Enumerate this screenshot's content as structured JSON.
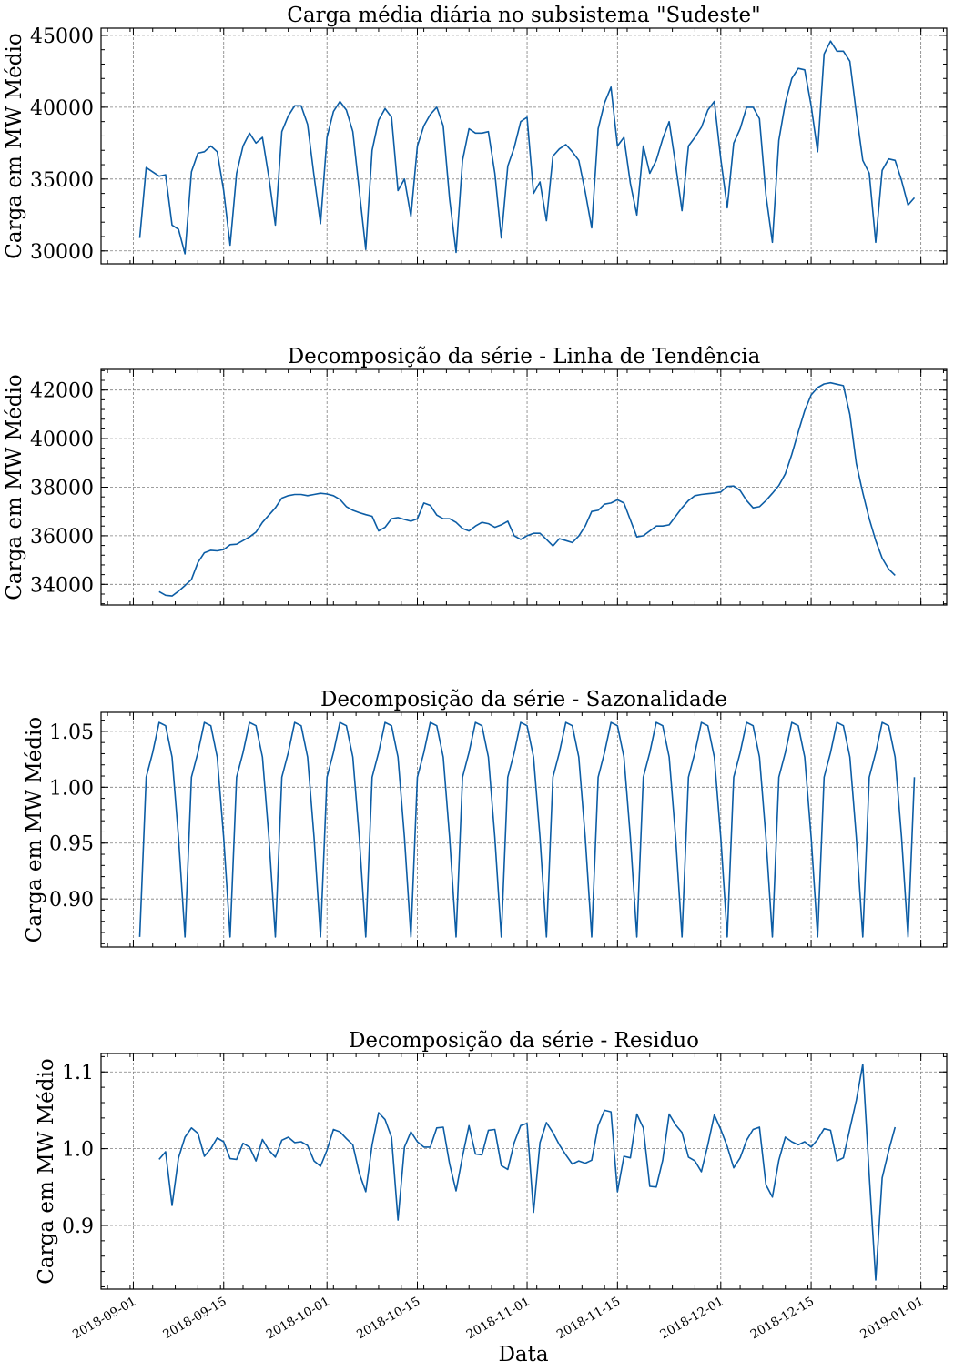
{
  "figure": {
    "xlabel": "Data",
    "x_tick_labels": [
      "2018-09-01",
      "2018-09-15",
      "2018-10-01",
      "2018-10-15",
      "2018-11-01",
      "2018-11-15",
      "2018-12-01",
      "2018-12-15",
      "2019-01-01"
    ],
    "x_ticks_day_offsets": [
      0,
      14,
      30,
      44,
      61,
      75,
      91,
      105,
      122
    ],
    "x_range_day_offsets": [
      -5,
      126
    ]
  },
  "chart_data": [
    {
      "type": "line",
      "title": "Carga média diária no subsistema \"Sudeste\"",
      "xlabel": "",
      "ylabel": "Carga em MW Médio",
      "ylim": [
        29100,
        45500
      ],
      "yticks": [
        30000,
        35000,
        40000,
        45000
      ],
      "ytick_labels": [
        "30000",
        "35000",
        "40000",
        "45000"
      ],
      "x_start_day_offset": 1,
      "values": [
        30900,
        35800,
        35500,
        35200,
        35300,
        31800,
        31500,
        29800,
        35500,
        36800,
        36900,
        37300,
        36900,
        34200,
        30400,
        35400,
        37300,
        38200,
        37500,
        37900,
        35100,
        31800,
        38300,
        39400,
        40100,
        40100,
        38800,
        35200,
        31900,
        37900,
        39700,
        40400,
        39800,
        38300,
        34200,
        30100,
        37000,
        39100,
        39900,
        39300,
        34200,
        35000,
        32400,
        37300,
        38700,
        39500,
        40000,
        38700,
        33600,
        29900,
        36300,
        38500,
        38200,
        38200,
        38300,
        35400,
        30900,
        35900,
        37200,
        39000,
        39300,
        34000,
        34800,
        32100,
        36600,
        37100,
        37400,
        36900,
        36300,
        34100,
        31600,
        38500,
        40300,
        41400,
        37300,
        37900,
        34700,
        32500,
        37300,
        35400,
        36300,
        37800,
        39000,
        36000,
        32800,
        37300,
        37900,
        38600,
        39800,
        40400,
        36400,
        33000,
        37500,
        38500,
        40000,
        40000,
        39200,
        33900,
        30600,
        37700,
        40300,
        42000,
        42700,
        42600,
        40100,
        36900,
        43700,
        44600,
        43900,
        43900,
        43200,
        39600,
        36300,
        35400,
        30600,
        35600,
        36400,
        36300,
        34900,
        33200,
        33700
      ]
    },
    {
      "type": "line",
      "title": "Decomposição da série - Linha de Tendência",
      "xlabel": "",
      "ylabel": "Carga em MW Médio",
      "ylim": [
        33150,
        42850
      ],
      "yticks": [
        34000,
        36000,
        38000,
        40000,
        42000
      ],
      "ytick_labels": [
        "34000",
        "36000",
        "38000",
        "40000",
        "42000"
      ],
      "x_start_day_offset": 4,
      "values": [
        33700,
        33550,
        33520,
        33720,
        33950,
        34200,
        34900,
        35300,
        35400,
        35380,
        35430,
        35630,
        35650,
        35800,
        35950,
        36150,
        36550,
        36850,
        37150,
        37550,
        37650,
        37700,
        37700,
        37650,
        37700,
        37750,
        37720,
        37650,
        37500,
        37200,
        37050,
        36950,
        36870,
        36800,
        36200,
        36350,
        36700,
        36750,
        36670,
        36600,
        36700,
        37350,
        37250,
        36850,
        36700,
        36700,
        36550,
        36300,
        36200,
        36400,
        36550,
        36500,
        36350,
        36450,
        36600,
        36000,
        35850,
        36000,
        36100,
        36100,
        35850,
        35580,
        35880,
        35800,
        35720,
        35990,
        36400,
        37000,
        37050,
        37300,
        37350,
        37480,
        37350,
        36650,
        35950,
        36000,
        36200,
        36400,
        36400,
        36450,
        36800,
        37150,
        37450,
        37650,
        37700,
        37730,
        37760,
        37800,
        38030,
        38050,
        37860,
        37450,
        37150,
        37200,
        37450,
        37750,
        38070,
        38550,
        39350,
        40270,
        41150,
        41800,
        42100,
        42250,
        42300,
        42240,
        42180,
        41000,
        38970,
        37770,
        36700,
        35800,
        35080,
        34630,
        34370
      ]
    },
    {
      "type": "line",
      "title": "Decomposição da série - Sazonalidade",
      "xlabel": "",
      "ylabel": "Carga em MW Médio",
      "ylim": [
        0.857,
        1.067
      ],
      "yticks": [
        0.9,
        0.95,
        1.0,
        1.05
      ],
      "ytick_labels": [
        "0.90",
        "0.95",
        "1.00",
        "1.05"
      ],
      "x_start_day_offset": 1,
      "values": [
        0.866,
        1.009,
        1.031,
        1.058,
        1.055,
        1.027,
        0.955,
        0.866,
        1.009,
        1.031,
        1.058,
        1.055,
        1.027,
        0.955,
        0.866,
        1.009,
        1.031,
        1.058,
        1.055,
        1.027,
        0.955,
        0.866,
        1.009,
        1.031,
        1.058,
        1.055,
        1.027,
        0.955,
        0.866,
        1.009,
        1.031,
        1.058,
        1.055,
        1.027,
        0.955,
        0.866,
        1.009,
        1.031,
        1.058,
        1.055,
        1.027,
        0.955,
        0.866,
        1.009,
        1.031,
        1.058,
        1.055,
        1.027,
        0.955,
        0.866,
        1.009,
        1.031,
        1.058,
        1.055,
        1.027,
        0.955,
        0.866,
        1.009,
        1.031,
        1.058,
        1.055,
        1.027,
        0.955,
        0.866,
        1.009,
        1.031,
        1.058,
        1.055,
        1.027,
        0.955,
        0.866,
        1.009,
        1.031,
        1.058,
        1.055,
        1.027,
        0.955,
        0.866,
        1.009,
        1.031,
        1.058,
        1.055,
        1.027,
        0.955,
        0.866,
        1.009,
        1.031,
        1.058,
        1.055,
        1.027,
        0.955,
        0.866,
        1.009,
        1.031,
        1.058,
        1.055,
        1.027,
        0.955,
        0.866,
        1.009,
        1.031,
        1.058,
        1.055,
        1.027,
        0.955,
        0.866,
        1.009,
        1.031,
        1.058,
        1.055,
        1.027,
        0.955,
        0.866,
        1.009,
        1.031,
        1.058,
        1.055,
        1.027,
        0.955,
        0.866,
        1.009
      ]
    },
    {
      "type": "line",
      "title": "Decomposição da série - Residuo",
      "xlabel": "Data",
      "ylabel": "Carga em MW Médio",
      "ylim": [
        0.817,
        1.124
      ],
      "yticks": [
        0.9,
        1.0,
        1.1
      ],
      "ytick_labels": [
        "0.9",
        "1.0",
        "1.1"
      ],
      "x_start_day_offset": 4,
      "values": [
        0.986,
        0.996,
        0.926,
        0.988,
        1.015,
        1.027,
        1.02,
        0.99,
        1.0,
        1.014,
        1.009,
        0.987,
        0.986,
        1.007,
        1.002,
        0.984,
        1.012,
        0.998,
        0.989,
        1.011,
        1.015,
        1.008,
        1.009,
        1.004,
        0.984,
        0.977,
        0.998,
        1.025,
        1.022,
        1.013,
        1.005,
        0.968,
        0.944,
        1.005,
        1.047,
        1.038,
        1.015,
        0.907,
        1.002,
        1.022,
        1.009,
        1.002,
        1.002,
        1.027,
        1.028,
        0.98,
        0.945,
        0.99,
        1.03,
        0.993,
        0.992,
        1.024,
        1.025,
        0.978,
        0.973,
        1.008,
        1.03,
        1.033,
        0.917,
        1.008,
        1.034,
        1.021,
        1.005,
        0.992,
        0.98,
        0.984,
        0.981,
        0.985,
        1.03,
        1.05,
        1.048,
        0.944,
        0.99,
        0.988,
        1.045,
        1.027,
        0.951,
        0.95,
        0.985,
        1.045,
        1.031,
        1.021,
        0.989,
        0.984,
        0.97,
        1.005,
        1.044,
        1.025,
        1.003,
        0.975,
        0.988,
        1.011,
        1.025,
        1.028,
        0.953,
        0.937,
        0.985,
        1.015,
        1.009,
        1.005,
        1.009,
        1.002,
        1.012,
        1.026,
        1.024,
        0.984,
        0.988,
        1.026,
        1.063,
        1.11,
        0.965,
        0.829,
        0.962,
        0.997,
        1.028
      ]
    }
  ]
}
